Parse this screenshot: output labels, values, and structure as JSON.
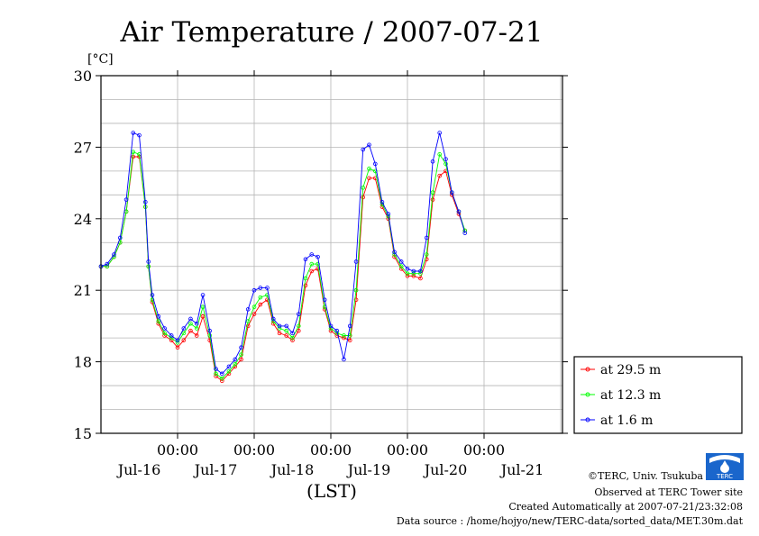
{
  "chart_data": {
    "type": "line",
    "title": "Air Temperature / 2007-07-21",
    "ylabel_unit": "[°C]",
    "xlabel": "(LST)",
    "ylim": [
      15,
      30
    ],
    "yticks": [
      15,
      18,
      21,
      24,
      27,
      30
    ],
    "grid": true,
    "legend_position": "right",
    "x_time_labels": [
      "00:00",
      "00:00",
      "00:00",
      "00:00",
      "00:00"
    ],
    "x_date_labels": [
      "Jul-16",
      "Jul-17",
      "Jul-18",
      "Jul-19",
      "Jul-20",
      "Jul-21"
    ],
    "x_range_days": [
      -1.0,
      5.0
    ],
    "x_day_origin": "2007-07-16",
    "series": [
      {
        "name": "at 29.5 m",
        "color": "#ff0000",
        "points": [
          [
            -1.0,
            22.0
          ],
          [
            -0.92,
            22.0
          ],
          [
            -0.83,
            22.4
          ],
          [
            -0.75,
            23.0
          ],
          [
            -0.67,
            24.3
          ],
          [
            -0.58,
            26.6
          ],
          [
            -0.5,
            26.6
          ],
          [
            -0.42,
            24.5
          ],
          [
            -0.38,
            22.0
          ],
          [
            -0.33,
            20.5
          ],
          [
            -0.25,
            19.6
          ],
          [
            -0.17,
            19.1
          ],
          [
            -0.08,
            18.9
          ],
          [
            0.0,
            18.6
          ],
          [
            0.08,
            18.9
          ],
          [
            0.17,
            19.3
          ],
          [
            0.25,
            19.1
          ],
          [
            0.33,
            19.9
          ],
          [
            0.42,
            18.9
          ],
          [
            0.5,
            17.4
          ],
          [
            0.58,
            17.2
          ],
          [
            0.67,
            17.5
          ],
          [
            0.75,
            17.8
          ],
          [
            0.83,
            18.1
          ],
          [
            0.92,
            19.5
          ],
          [
            1.0,
            20.0
          ],
          [
            1.08,
            20.4
          ],
          [
            1.17,
            20.6
          ],
          [
            1.25,
            19.6
          ],
          [
            1.33,
            19.2
          ],
          [
            1.42,
            19.1
          ],
          [
            1.5,
            18.9
          ],
          [
            1.58,
            19.3
          ],
          [
            1.67,
            21.2
          ],
          [
            1.75,
            21.8
          ],
          [
            1.83,
            21.9
          ],
          [
            1.92,
            20.2
          ],
          [
            2.0,
            19.3
          ],
          [
            2.08,
            19.1
          ],
          [
            2.17,
            19.0
          ],
          [
            2.25,
            18.9
          ],
          [
            2.33,
            20.6
          ],
          [
            2.42,
            24.9
          ],
          [
            2.5,
            25.7
          ],
          [
            2.58,
            25.7
          ],
          [
            2.67,
            24.5
          ],
          [
            2.75,
            24.0
          ],
          [
            2.83,
            22.4
          ],
          [
            2.92,
            21.9
          ],
          [
            3.0,
            21.6
          ],
          [
            3.08,
            21.6
          ],
          [
            3.17,
            21.5
          ],
          [
            3.25,
            22.3
          ],
          [
            3.33,
            24.8
          ],
          [
            3.42,
            25.8
          ],
          [
            3.5,
            26.0
          ],
          [
            3.58,
            25.0
          ],
          [
            3.67,
            24.2
          ],
          [
            3.75,
            23.5
          ]
        ]
      },
      {
        "name": "at 12.3 m",
        "color": "#00ff00",
        "points": [
          [
            -1.0,
            22.0
          ],
          [
            -0.92,
            22.0
          ],
          [
            -0.83,
            22.4
          ],
          [
            -0.75,
            23.0
          ],
          [
            -0.67,
            24.3
          ],
          [
            -0.58,
            26.8
          ],
          [
            -0.5,
            26.7
          ],
          [
            -0.42,
            24.5
          ],
          [
            -0.38,
            22.0
          ],
          [
            -0.33,
            20.6
          ],
          [
            -0.25,
            19.7
          ],
          [
            -0.17,
            19.2
          ],
          [
            -0.08,
            19.0
          ],
          [
            0.0,
            18.8
          ],
          [
            0.08,
            19.2
          ],
          [
            0.17,
            19.6
          ],
          [
            0.25,
            19.4
          ],
          [
            0.33,
            20.3
          ],
          [
            0.42,
            19.1
          ],
          [
            0.5,
            17.5
          ],
          [
            0.58,
            17.3
          ],
          [
            0.67,
            17.6
          ],
          [
            0.75,
            17.9
          ],
          [
            0.83,
            18.3
          ],
          [
            0.92,
            19.7
          ],
          [
            1.0,
            20.3
          ],
          [
            1.08,
            20.7
          ],
          [
            1.17,
            20.8
          ],
          [
            1.25,
            19.7
          ],
          [
            1.33,
            19.4
          ],
          [
            1.42,
            19.3
          ],
          [
            1.5,
            19.0
          ],
          [
            1.58,
            19.5
          ],
          [
            1.67,
            21.5
          ],
          [
            1.75,
            22.1
          ],
          [
            1.83,
            22.1
          ],
          [
            1.92,
            20.3
          ],
          [
            2.0,
            19.4
          ],
          [
            2.08,
            19.2
          ],
          [
            2.17,
            19.1
          ],
          [
            2.25,
            19.1
          ],
          [
            2.33,
            21.0
          ],
          [
            2.42,
            25.3
          ],
          [
            2.5,
            26.1
          ],
          [
            2.58,
            26.0
          ],
          [
            2.67,
            24.6
          ],
          [
            2.75,
            24.1
          ],
          [
            2.83,
            22.5
          ],
          [
            2.92,
            22.0
          ],
          [
            3.0,
            21.7
          ],
          [
            3.08,
            21.7
          ],
          [
            3.17,
            21.7
          ],
          [
            3.25,
            22.5
          ],
          [
            3.33,
            25.1
          ],
          [
            3.42,
            26.7
          ],
          [
            3.5,
            26.3
          ],
          [
            3.58,
            25.1
          ],
          [
            3.67,
            24.3
          ],
          [
            3.75,
            23.5
          ]
        ]
      },
      {
        "name": "at 1.6 m",
        "color": "#0000ff",
        "points": [
          [
            -1.0,
            22.0
          ],
          [
            -0.92,
            22.1
          ],
          [
            -0.83,
            22.5
          ],
          [
            -0.75,
            23.2
          ],
          [
            -0.67,
            24.8
          ],
          [
            -0.58,
            27.6
          ],
          [
            -0.5,
            27.5
          ],
          [
            -0.42,
            24.7
          ],
          [
            -0.38,
            22.2
          ],
          [
            -0.33,
            20.8
          ],
          [
            -0.25,
            19.9
          ],
          [
            -0.17,
            19.4
          ],
          [
            -0.08,
            19.1
          ],
          [
            0.0,
            18.9
          ],
          [
            0.08,
            19.4
          ],
          [
            0.17,
            19.8
          ],
          [
            0.25,
            19.6
          ],
          [
            0.33,
            20.8
          ],
          [
            0.42,
            19.3
          ],
          [
            0.5,
            17.7
          ],
          [
            0.58,
            17.5
          ],
          [
            0.67,
            17.8
          ],
          [
            0.75,
            18.1
          ],
          [
            0.83,
            18.6
          ],
          [
            0.92,
            20.2
          ],
          [
            1.0,
            21.0
          ],
          [
            1.08,
            21.1
          ],
          [
            1.17,
            21.1
          ],
          [
            1.25,
            19.8
          ],
          [
            1.33,
            19.5
          ],
          [
            1.42,
            19.5
          ],
          [
            1.5,
            19.2
          ],
          [
            1.58,
            20.0
          ],
          [
            1.67,
            22.3
          ],
          [
            1.75,
            22.5
          ],
          [
            1.83,
            22.4
          ],
          [
            1.92,
            20.6
          ],
          [
            2.0,
            19.5
          ],
          [
            2.08,
            19.3
          ],
          [
            2.17,
            18.1
          ],
          [
            2.25,
            19.5
          ],
          [
            2.33,
            22.2
          ],
          [
            2.42,
            26.9
          ],
          [
            2.5,
            27.1
          ],
          [
            2.58,
            26.3
          ],
          [
            2.67,
            24.7
          ],
          [
            2.75,
            24.2
          ],
          [
            2.83,
            22.6
          ],
          [
            2.92,
            22.2
          ],
          [
            3.0,
            21.9
          ],
          [
            3.08,
            21.8
          ],
          [
            3.17,
            21.8
          ],
          [
            3.25,
            23.2
          ],
          [
            3.33,
            26.4
          ],
          [
            3.42,
            27.6
          ],
          [
            3.5,
            26.5
          ],
          [
            3.58,
            25.1
          ],
          [
            3.67,
            24.3
          ],
          [
            3.75,
            23.4
          ]
        ]
      }
    ]
  },
  "footer": {
    "copyright": "©TERC, Univ. Tsukuba",
    "observed": "Observed at TERC Tower site",
    "created": "Created Automatically at 2007-07-21/23:32:08",
    "source": "Data source : /home/hojyo/new/TERC-data/sorted_data/MET.30m.dat",
    "logo_text": "TERC"
  }
}
